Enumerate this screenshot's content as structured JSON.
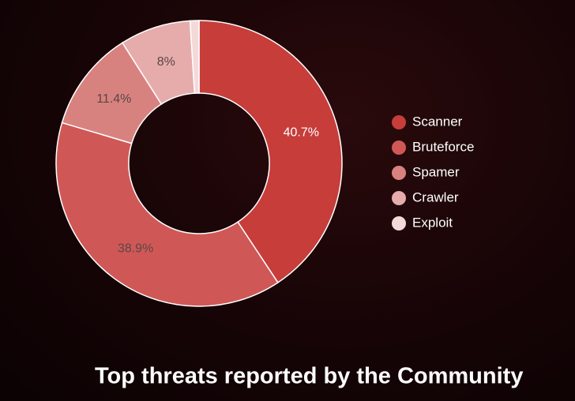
{
  "chart_data": {
    "type": "donut",
    "title": "Top threats reported by the Community",
    "categories": [
      "Scanner",
      "Bruteforce",
      "Spamer",
      "Crawler",
      "Exploit"
    ],
    "values": [
      40.7,
      38.9,
      11.4,
      8,
      1
    ],
    "value_labels": [
      "40.7%",
      "38.9%",
      "11.4%",
      "8%",
      null
    ],
    "colors": [
      "#c63d3a",
      "#cf5856",
      "#d88280",
      "#e6acab",
      "#f4d9d9"
    ],
    "legend": "right"
  }
}
